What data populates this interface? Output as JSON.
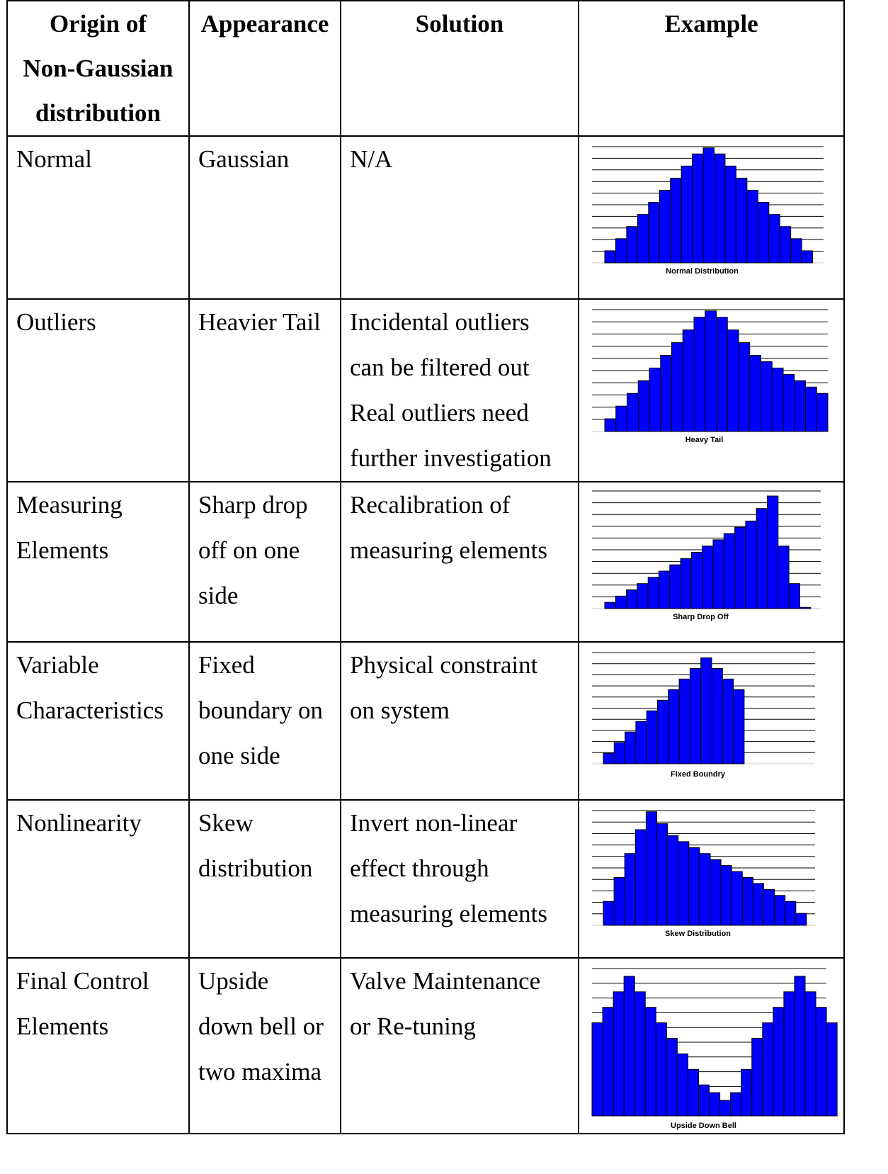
{
  "table": {
    "headers": [
      {
        "lines": [
          "Origin of",
          "Non-Gaussian",
          "distribution"
        ]
      },
      {
        "lines": [
          "Appearance"
        ]
      },
      {
        "lines": [
          "Solution"
        ]
      },
      {
        "lines": [
          "Example"
        ]
      }
    ],
    "rows": [
      {
        "origin": [
          "Normal"
        ],
        "appearance": [
          "Gaussian"
        ],
        "solution": [
          "N/A"
        ]
      },
      {
        "origin": [
          "Outliers"
        ],
        "appearance": [
          "Heavier Tail"
        ],
        "solution": [
          "Incidental outliers",
          "can be filtered out",
          "Real outliers need",
          "further investigation"
        ]
      },
      {
        "origin": [
          "Measuring",
          "Elements"
        ],
        "appearance": [
          "Sharp drop",
          "off on one",
          "side"
        ],
        "solution": [
          "Recalibration of",
          "measuring elements"
        ]
      },
      {
        "origin": [
          "Variable",
          "Characteristics"
        ],
        "appearance": [
          "Fixed",
          "boundary on",
          "one side"
        ],
        "solution": [
          "Physical constraint",
          "on system"
        ]
      },
      {
        "origin": [
          "Nonlinearity"
        ],
        "appearance": [
          "Skew",
          "distribution"
        ],
        "solution": [
          "Invert non-linear",
          "effect through",
          "measuring elements"
        ]
      },
      {
        "origin": [
          "Final Control",
          "Elements"
        ],
        "appearance": [
          "Upside",
          "down bell or",
          "two maxima"
        ],
        "solution": [
          "Valve Maintenance",
          "or Re-tuning"
        ]
      }
    ]
  },
  "chart_data": [
    {
      "type": "bar",
      "title": "Normal Distribution",
      "bar_color": "#0000ff",
      "grid": true,
      "values": [
        1,
        2,
        3,
        4,
        5,
        6,
        7,
        8,
        9,
        9.5,
        9,
        8,
        7,
        6,
        5,
        4,
        3,
        2,
        1
      ],
      "ylim": [
        0,
        9.6
      ]
    },
    {
      "type": "bar",
      "title": "Heavy Tail",
      "bar_color": "#0000ff",
      "grid": true,
      "values": [
        1,
        2,
        3,
        4,
        5,
        6,
        7,
        8,
        9,
        9.5,
        9,
        8,
        7,
        6,
        5.5,
        5,
        4.5,
        4,
        3.5,
        3
      ],
      "ylim": [
        0,
        9.6
      ]
    },
    {
      "type": "bar",
      "title": "Sharp Drop Off",
      "bar_color": "#0000ff",
      "grid": true,
      "values": [
        0.5,
        1,
        1.5,
        2,
        2.5,
        3,
        3.5,
        4,
        4.5,
        5,
        5.5,
        6,
        6.5,
        7,
        8,
        9,
        5,
        2,
        0.1
      ],
      "ylim": [
        0,
        9.4
      ]
    },
    {
      "type": "bar",
      "title": "Fixed Boundry",
      "bar_color": "#0000ff",
      "grid": true,
      "values": [
        1,
        2,
        3,
        4,
        5,
        6,
        7,
        8,
        9,
        10,
        9,
        8,
        7
      ],
      "ylim": [
        0,
        10.5
      ]
    },
    {
      "type": "bar",
      "title": "Skew Distribution",
      "bar_color": "#0000ff",
      "grid": true,
      "values": [
        2,
        4,
        6,
        8,
        9.5,
        8.5,
        7.5,
        7,
        6.5,
        6,
        5.5,
        5,
        4.5,
        4,
        3.5,
        3,
        2.5,
        2,
        1
      ],
      "ylim": [
        0,
        9.6
      ]
    },
    {
      "type": "bar",
      "title": "Upside Down Bell",
      "bar_color": "#0000ff",
      "grid": true,
      "values": [
        6,
        7,
        8,
        9,
        8,
        7,
        6,
        5,
        4,
        3,
        2,
        1.5,
        1,
        1.5,
        3,
        5,
        6,
        7,
        8,
        9,
        8,
        7,
        6
      ],
      "ylim": [
        0,
        9.5
      ]
    }
  ]
}
